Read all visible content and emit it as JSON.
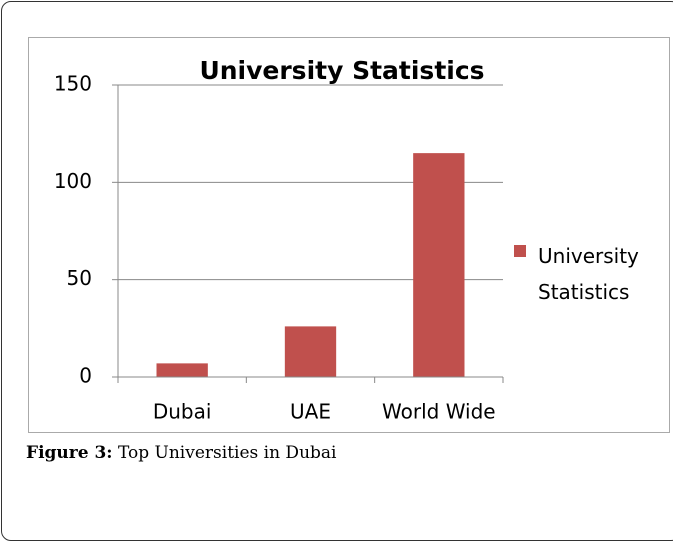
{
  "chart_data": {
    "type": "bar",
    "title": "University Statistics",
    "categories": [
      "Dubai",
      "UAE",
      "World Wide"
    ],
    "series": [
      {
        "name": "University Statistics",
        "color": "#c0504d",
        "values": [
          7,
          26,
          115
        ]
      }
    ],
    "ylim": [
      0,
      150
    ],
    "yticks": [
      0,
      50,
      100,
      150
    ],
    "grid": true,
    "legend": "right"
  },
  "caption": {
    "label": "Figure 3:",
    "text": "Top Universities in Dubai"
  }
}
